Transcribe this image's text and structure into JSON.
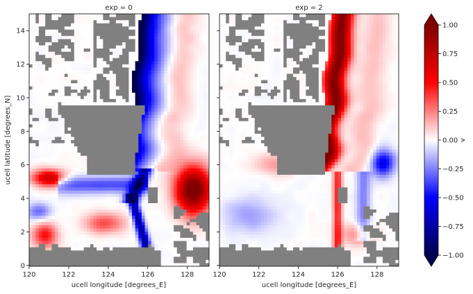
{
  "chart_data": {
    "type": "heatmap",
    "variable": "v",
    "colormap": "seismic",
    "colorbar": {
      "label": "v",
      "min": -1.0,
      "max": 1.0,
      "extend": "both",
      "ticks": [
        -1.0,
        -0.75,
        -0.5,
        -0.25,
        0.0,
        0.25,
        0.5,
        0.75,
        1.0
      ],
      "tick_labels": [
        "−1.00",
        "−0.75",
        "−0.50",
        "−0.25",
        "0.00",
        "0.25",
        "0.50",
        "0.75",
        "1.00"
      ]
    },
    "xlabel": "ucell longitude [degrees_E]",
    "ylabel": "ucell latitude [degrees_N]",
    "xlim": [
      120,
      129.1
    ],
    "ylim": [
      -0.05,
      15
    ],
    "xticks": [
      120,
      122,
      124,
      126,
      128
    ],
    "yticks": [
      0,
      2,
      4,
      6,
      8,
      10,
      12,
      14
    ],
    "land_color": "#808080",
    "panels": [
      {
        "title": "exp = 0",
        "regime": "strong southward coastal jet (negative v), northward flow in southeast"
      },
      {
        "title": "exp = 2",
        "regime": "northward coastal jet (positive v), weaker southward flow offshore"
      }
    ]
  }
}
